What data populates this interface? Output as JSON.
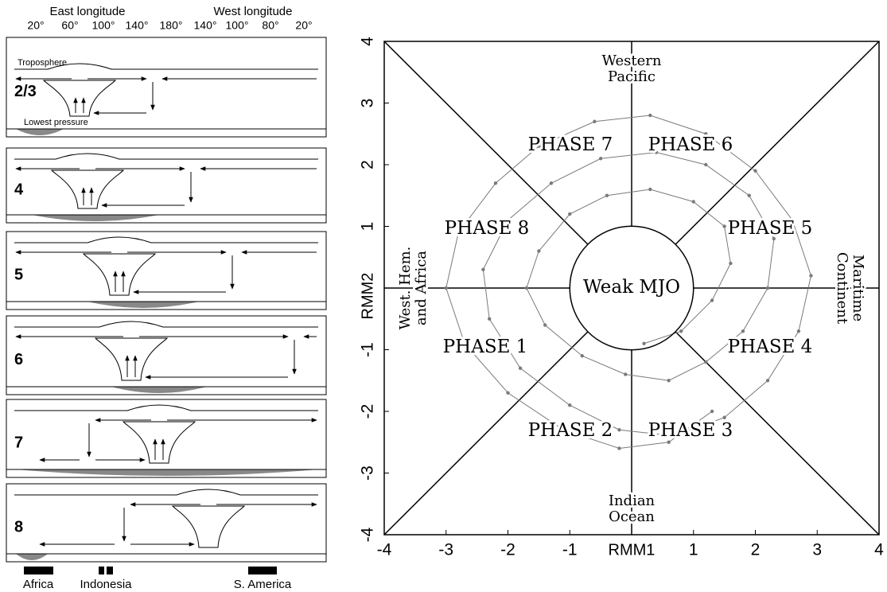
{
  "diagram": {
    "header": {
      "east": "East longitude",
      "west": "West longitude"
    },
    "longitudes": [
      "20°",
      "60°",
      "100°",
      "140°",
      "180°",
      "140°",
      "100°",
      "80°",
      "20°"
    ],
    "panels": [
      {
        "label": "2/3",
        "top_label": "Troposphere",
        "bottom_label": "Lowest pressure"
      },
      {
        "label": "4"
      },
      {
        "label": "5"
      },
      {
        "label": "6"
      },
      {
        "label": "7"
      },
      {
        "label": "8"
      }
    ],
    "regions": [
      "Africa",
      "Indonesia",
      "S. America"
    ]
  },
  "chart_data": {
    "type": "line",
    "x_label": "RMM1",
    "y_label": "RMM2",
    "xlim": [
      -4,
      4
    ],
    "ylim": [
      -4,
      4
    ],
    "xticks": [
      -4,
      -3,
      -2,
      -1,
      1,
      2,
      3,
      4
    ],
    "yticks": [
      -4,
      -3,
      -2,
      -1,
      1,
      2,
      3,
      4
    ],
    "phase_labels": [
      "PHASE 1",
      "PHASE 2",
      "PHASE 3",
      "PHASE 4",
      "PHASE 5",
      "PHASE 6",
      "PHASE 7",
      "PHASE 8"
    ],
    "region_labels": {
      "top": [
        "Western",
        "Pacific"
      ],
      "bottom": [
        "Indian",
        "Ocean"
      ],
      "left": [
        "West. Hem.",
        "and Africa"
      ],
      "right": [
        "Maritime",
        "Continent"
      ]
    },
    "center_label": "Weak MJO",
    "series": [
      {
        "color": "#7a7a7a",
        "x": [
          0.2,
          0.8,
          1.3,
          1.6,
          1.5,
          1.0,
          0.3,
          -0.4,
          -1.0,
          -1.5,
          -1.7,
          -1.4,
          -0.8,
          -0.1,
          0.6,
          1.2,
          1.8,
          2.2,
          2.3,
          1.9,
          1.2,
          0.4,
          -0.5,
          -1.3,
          -2.0,
          -2.4,
          -2.3,
          -1.8,
          -1.0,
          -0.2,
          0.7,
          1.5,
          2.2,
          2.7,
          2.9,
          2.6,
          2.0,
          1.2,
          0.3,
          -0.6,
          -1.5,
          -2.2,
          -2.8,
          -3.0,
          -2.7,
          -2.0,
          -1.1,
          -0.2,
          0.6,
          1.3
        ],
        "values": [
          -0.9,
          -0.7,
          -0.2,
          0.4,
          1.0,
          1.4,
          1.6,
          1.5,
          1.2,
          0.6,
          0.0,
          -0.6,
          -1.1,
          -1.4,
          -1.5,
          -1.2,
          -0.7,
          0.0,
          0.8,
          1.5,
          2.0,
          2.2,
          2.1,
          1.7,
          1.1,
          0.3,
          -0.5,
          -1.3,
          -1.9,
          -2.3,
          -2.4,
          -2.1,
          -1.5,
          -0.7,
          0.2,
          1.1,
          1.9,
          2.5,
          2.8,
          2.7,
          2.3,
          1.7,
          0.9,
          0.0,
          -0.9,
          -1.7,
          -2.3,
          -2.6,
          -2.5,
          -2.0
        ]
      }
    ]
  }
}
